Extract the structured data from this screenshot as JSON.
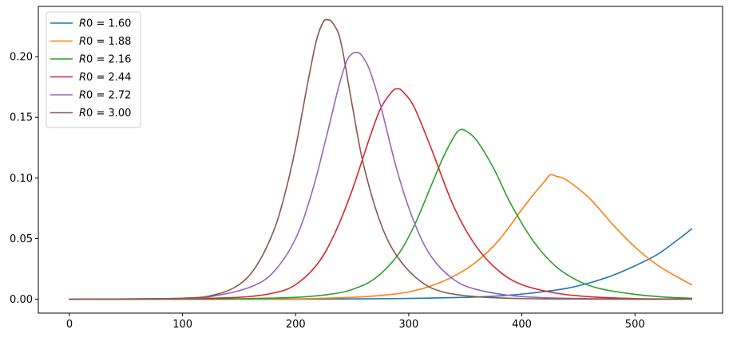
{
  "chart_data": {
    "type": "line",
    "title": "",
    "xlabel": "",
    "ylabel": "",
    "xlim": [
      -27.5,
      577.5
    ],
    "ylim": [
      -0.0115,
      0.2415
    ],
    "xticks": [
      0,
      100,
      200,
      300,
      400,
      500
    ],
    "yticks": [
      0.0,
      0.05,
      0.1,
      0.15,
      0.2
    ],
    "xtick_labels": [
      "0",
      "100",
      "200",
      "300",
      "400",
      "500"
    ],
    "ytick_labels": [
      "0.00",
      "0.05",
      "0.10",
      "0.15",
      "0.20"
    ],
    "legend_position": "top-left",
    "grid": false,
    "series": [
      {
        "name": "R0 = 1.60",
        "legend_label": {
          "var": "R0",
          "eq": " = ",
          "val": "1.60"
        },
        "color": "#1f77b4",
        "x": [
          0,
          50,
          100,
          150,
          200,
          250,
          300,
          350,
          380,
          400,
          420,
          440,
          460,
          480,
          500,
          520,
          540,
          550
        ],
        "y": [
          0.0,
          0.0,
          0.0,
          0.0,
          0.0,
          0.0002,
          0.0006,
          0.0015,
          0.0027,
          0.0042,
          0.0063,
          0.009,
          0.0135,
          0.0195,
          0.0275,
          0.037,
          0.0505,
          0.0578
        ]
      },
      {
        "name": "R0 = 1.88",
        "legend_label": {
          "var": "R0",
          "eq": " = ",
          "val": "1.88"
        },
        "color": "#ff7f0e",
        "x": [
          0,
          100,
          200,
          250,
          280,
          300,
          320,
          340,
          360,
          380,
          400,
          410,
          420,
          425,
          430,
          440,
          460,
          480,
          500,
          520,
          540,
          550
        ],
        "y": [
          0.0,
          0.0,
          0.0003,
          0.0015,
          0.0035,
          0.006,
          0.011,
          0.019,
          0.031,
          0.049,
          0.074,
          0.086,
          0.097,
          0.1025,
          0.1015,
          0.098,
          0.083,
          0.062,
          0.043,
          0.028,
          0.017,
          0.012
        ]
      },
      {
        "name": "R0 = 2.16",
        "legend_label": {
          "var": "R0",
          "eq": " = ",
          "val": "2.16"
        },
        "color": "#2ca02c",
        "x": [
          0,
          100,
          150,
          200,
          230,
          250,
          270,
          290,
          305,
          320,
          330,
          340,
          345,
          350,
          360,
          375,
          390,
          410,
          430,
          450,
          470,
          500,
          530,
          550
        ],
        "y": [
          0.0,
          0.0,
          0.0003,
          0.0015,
          0.004,
          0.008,
          0.017,
          0.036,
          0.061,
          0.094,
          0.116,
          0.134,
          0.1395,
          0.139,
          0.131,
          0.108,
          0.079,
          0.048,
          0.027,
          0.015,
          0.0085,
          0.004,
          0.0015,
          0.0008
        ]
      },
      {
        "name": "R0 = 2.44",
        "legend_label": {
          "var": "R0",
          "eq": " = ",
          "val": "2.44"
        },
        "color": "#d62728",
        "x": [
          0,
          100,
          150,
          180,
          200,
          220,
          235,
          250,
          265,
          275,
          285,
          290,
          295,
          305,
          320,
          340,
          360,
          380,
          400,
          430,
          460,
          500,
          550
        ],
        "y": [
          0.0,
          0.0004,
          0.0015,
          0.005,
          0.012,
          0.03,
          0.055,
          0.09,
          0.132,
          0.157,
          0.171,
          0.1735,
          0.171,
          0.158,
          0.124,
          0.076,
          0.043,
          0.023,
          0.012,
          0.005,
          0.002,
          0.0005,
          0.0002
        ]
      },
      {
        "name": "R0 = 2.72",
        "legend_label": {
          "var": "R0",
          "eq": " = ",
          "val": "2.72"
        },
        "color": "#9467bd",
        "x": [
          0,
          100,
          130,
          160,
          180,
          200,
          215,
          228,
          238,
          245,
          250,
          254,
          258,
          265,
          275,
          290,
          305,
          320,
          340,
          360,
          390,
          420,
          460,
          500,
          550
        ],
        "y": [
          0.0,
          0.0006,
          0.003,
          0.01,
          0.022,
          0.05,
          0.09,
          0.137,
          0.175,
          0.196,
          0.2025,
          0.2035,
          0.2015,
          0.19,
          0.16,
          0.105,
          0.063,
          0.035,
          0.016,
          0.008,
          0.003,
          0.0012,
          0.0004,
          0.0001,
          0.0
        ]
      },
      {
        "name": "R0 = 3.00",
        "legend_label": {
          "var": "R0",
          "eq": " = ",
          "val": "3.00"
        },
        "color": "#8c564b",
        "x": [
          0,
          100,
          130,
          150,
          165,
          180,
          190,
          200,
          210,
          218,
          224,
          228,
          233,
          240,
          250,
          260,
          275,
          290,
          310,
          330,
          360,
          400,
          450,
          500,
          550
        ],
        "y": [
          0.0,
          0.0008,
          0.004,
          0.012,
          0.027,
          0.055,
          0.085,
          0.125,
          0.175,
          0.212,
          0.228,
          0.2305,
          0.2275,
          0.212,
          0.16,
          0.111,
          0.063,
          0.035,
          0.015,
          0.006,
          0.002,
          0.0005,
          0.0001,
          0.0,
          0.0
        ]
      }
    ]
  }
}
